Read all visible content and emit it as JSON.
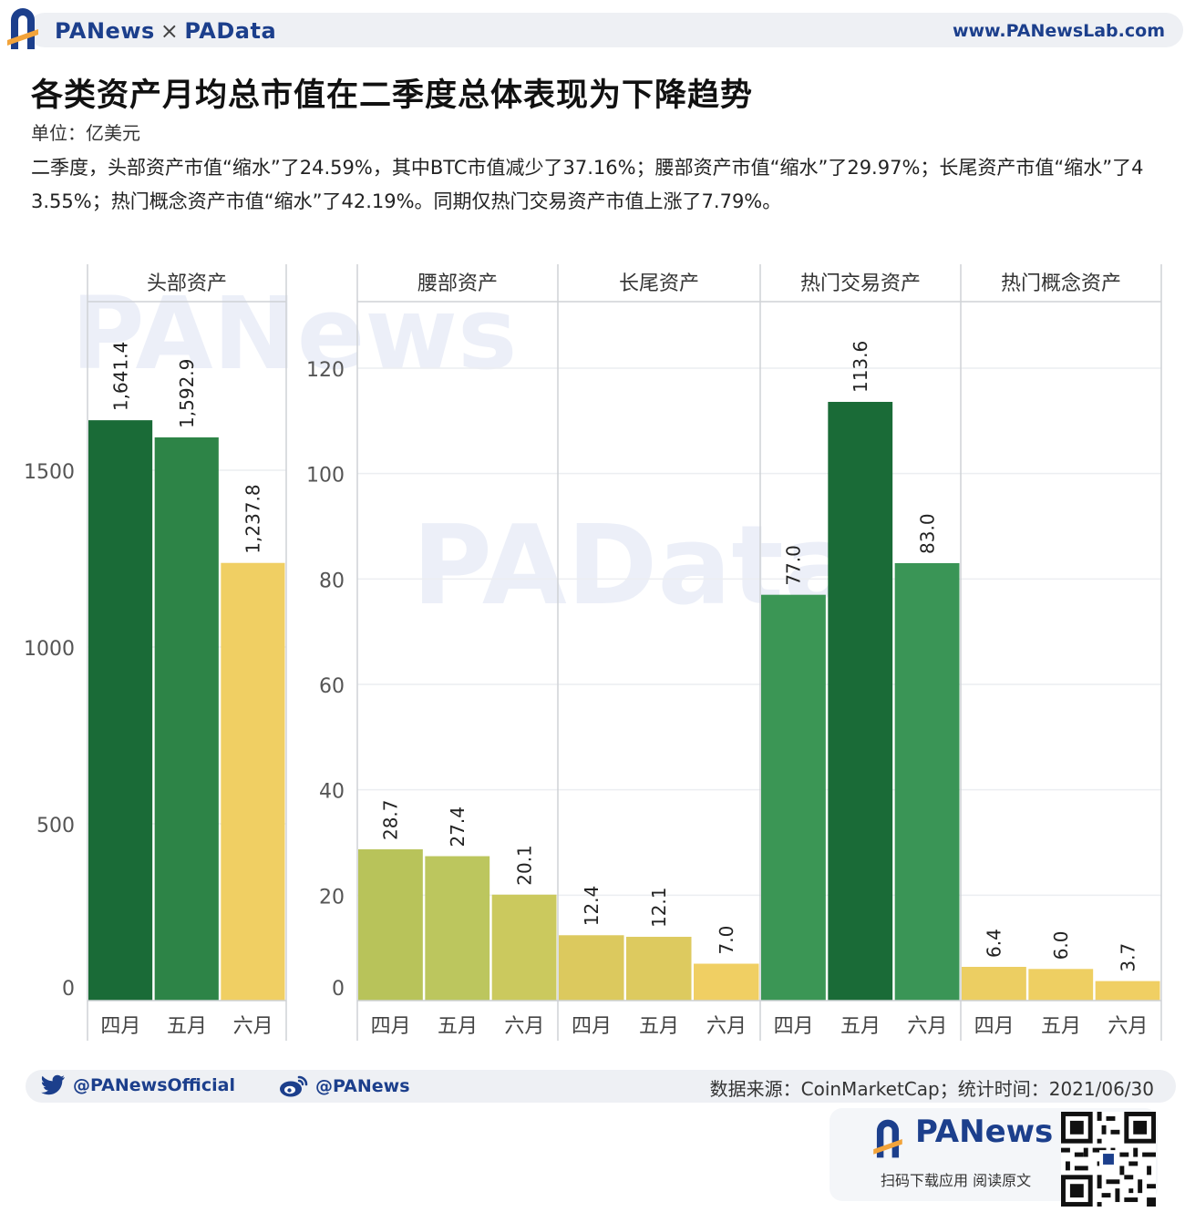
{
  "header": {
    "brand_left": "PANews",
    "brand_sep": "×",
    "brand_right": "PAData",
    "site": "www.PANewsLab.com"
  },
  "title": "各类资产月均总市值在二季度总体表现为下降趋势",
  "unit": "单位：亿美元",
  "description": "二季度，头部资产市值“缩水”了24.59%，其中BTC市值减少了37.16%；腰部资产市值“缩水”了29.97%；长尾资产市值“缩水”了43.55%；热门概念资产市值“缩水”了42.19%。同期仅热门交易资产市值上涨了7.79%。",
  "chart_data": [
    {
      "type": "bar",
      "panel": "头部资产",
      "categories": [
        "四月",
        "五月",
        "六月"
      ],
      "values": [
        1641.4,
        1592.9,
        1237.8
      ],
      "value_labels": [
        "1,641.4",
        "1,592.9",
        "1,237.8"
      ],
      "colors": [
        "#1a6b37",
        "#2d8447",
        "#f0cf63"
      ],
      "ylim": [
        0,
        1750
      ],
      "yticks": [
        0,
        500,
        1000,
        1500
      ]
    },
    {
      "type": "bar",
      "panel": "腰部资产",
      "categories": [
        "四月",
        "五月",
        "六月"
      ],
      "values": [
        28.7,
        27.4,
        20.1
      ],
      "value_labels": [
        "28.7",
        "27.4",
        "20.1"
      ],
      "colors": [
        "#b8c35a",
        "#bcc65e",
        "#cbc95e"
      ],
      "ylim": [
        0,
        138
      ],
      "yticks": [
        0,
        20,
        40,
        60,
        80,
        100,
        120
      ]
    },
    {
      "type": "bar",
      "panel": "长尾资产",
      "categories": [
        "四月",
        "五月",
        "六月"
      ],
      "values": [
        12.4,
        12.1,
        7.0
      ],
      "value_labels": [
        "12.4",
        "12.1",
        "7.0"
      ],
      "colors": [
        "#dcc95e",
        "#ddca5f",
        "#f0cf63"
      ],
      "ylim": [
        0,
        138
      ]
    },
    {
      "type": "bar",
      "panel": "热门交易资产",
      "categories": [
        "四月",
        "五月",
        "六月"
      ],
      "values": [
        77.0,
        113.6,
        83.0
      ],
      "value_labels": [
        "77.0",
        "113.6",
        "83.0"
      ],
      "colors": [
        "#3b9655",
        "#1a6b37",
        "#3a9556"
      ],
      "ylim": [
        0,
        138
      ]
    },
    {
      "type": "bar",
      "panel": "热门概念资产",
      "categories": [
        "四月",
        "五月",
        "六月"
      ],
      "values": [
        6.4,
        6.0,
        3.7
      ],
      "value_labels": [
        "6.4",
        "6.0",
        "3.7"
      ],
      "colors": [
        "#ecce62",
        "#eecf62",
        "#f0cf63"
      ],
      "ylim": [
        0,
        138
      ]
    }
  ],
  "footer": {
    "twitter": "@PANewsOfficial",
    "weibo": "@PANews",
    "source": "数据来源：CoinMarketCap；统计时间：2021/06/30",
    "promo_brand": "PANews",
    "promo_caption": "扫码下载应用  阅读原文"
  }
}
